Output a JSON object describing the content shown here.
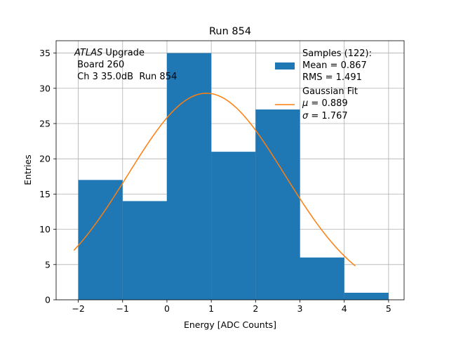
{
  "chart_data": {
    "type": "bar",
    "title": "Run 854",
    "xlabel": "Energy [ADC Counts]",
    "ylabel": "Entries",
    "xlim": [
      -2.5,
      5.35
    ],
    "ylim": [
      0,
      36.75
    ],
    "xticks": [
      -2,
      -1,
      0,
      1,
      2,
      3,
      4,
      5
    ],
    "xtick_labels": [
      "−2",
      "−1",
      "0",
      "1",
      "2",
      "3",
      "4",
      "5"
    ],
    "yticks": [
      0,
      5,
      10,
      15,
      20,
      25,
      30,
      35
    ],
    "ytick_labels": [
      "0",
      "5",
      "10",
      "15",
      "20",
      "25",
      "30",
      "35"
    ],
    "grid": true,
    "bins": [
      {
        "x0": -2,
        "x1": -1,
        "count": 17
      },
      {
        "x0": -1,
        "x1": 0,
        "count": 14
      },
      {
        "x0": 0,
        "x1": 1,
        "count": 35
      },
      {
        "x0": 1,
        "x1": 2,
        "count": 21
      },
      {
        "x0": 2,
        "x1": 3,
        "count": 27
      },
      {
        "x0": 3,
        "x1": 4,
        "count": 6
      },
      {
        "x0": 4,
        "x1": 5,
        "count": 1
      }
    ],
    "fit": {
      "mu": 0.889,
      "sigma": 1.767,
      "amplitude": 29.3,
      "x_range": [
        -2.1,
        4.25
      ]
    },
    "colors": {
      "bars": "#1f77b4",
      "fit_line": "#ff7f0e",
      "grid": "#b0b0b0"
    },
    "annotation": {
      "line1_italic": "ATLAS",
      "line1_rest": " Upgrade",
      "line2": " Board 260",
      "line3": " Ch 3 35.0dB  Run 854"
    },
    "legend": {
      "placement": "top-right",
      "samples": {
        "label": "Samples (122):",
        "mean": "Mean = 0.867",
        "rms": "RMS = 1.491"
      },
      "fit": {
        "label": "Gaussian Fit",
        "mu_symbol": "μ",
        "mu_value": " = 0.889",
        "sigma_symbol": "σ",
        "sigma_value": " = 1.767"
      }
    }
  }
}
